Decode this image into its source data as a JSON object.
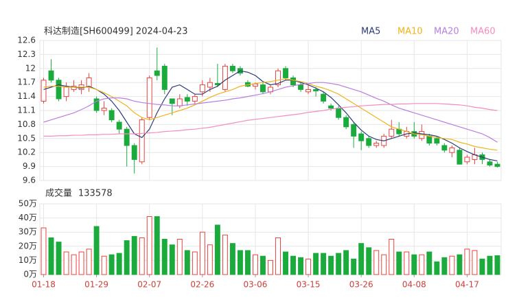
{
  "chart_data": [
    {
      "type": "candlestick",
      "title": "科达制造[SH600499] 2024-04-23",
      "open": [
        11.3,
        11.95,
        11.75,
        11.4,
        11.55,
        11.55,
        11.6,
        11.35,
        11.1,
        11.1,
        10.85,
        10.7,
        10.35,
        10.0,
        10.95,
        11.95,
        12.05,
        11.35,
        11.2,
        11.38,
        11.3,
        11.5,
        11.6,
        11.68,
        11.55,
        12.05,
        12.0,
        11.7,
        11.62,
        11.65,
        11.5,
        11.65,
        12.0,
        11.8,
        11.65,
        11.5,
        11.55,
        11.45,
        11.2,
        11.15,
        10.95,
        10.8,
        10.6,
        10.5,
        10.35,
        10.35,
        10.55,
        10.7,
        10.55,
        10.65,
        10.5,
        10.55,
        10.5,
        10.35,
        10.2,
        10.25,
        10.0,
        10.05,
        10.15,
        10.0,
        9.95
      ],
      "high": [
        11.8,
        12.2,
        11.8,
        11.7,
        11.75,
        11.75,
        11.9,
        11.4,
        11.3,
        11.15,
        10.9,
        10.75,
        10.4,
        10.95,
        11.85,
        12.45,
        12.1,
        11.35,
        11.45,
        11.45,
        11.45,
        11.75,
        11.8,
        12.1,
        12.1,
        12.1,
        12.05,
        11.75,
        11.7,
        11.7,
        11.65,
        12.0,
        12.05,
        11.85,
        11.7,
        11.65,
        11.6,
        11.5,
        11.25,
        11.2,
        11.0,
        10.85,
        10.65,
        10.55,
        10.45,
        10.6,
        10.9,
        10.85,
        10.75,
        10.85,
        10.8,
        10.6,
        10.55,
        10.4,
        10.35,
        10.3,
        10.15,
        10.3,
        10.2,
        10.05,
        10.0
      ],
      "low": [
        11.25,
        11.7,
        11.3,
        11.3,
        11.5,
        11.45,
        11.5,
        11.05,
        11.0,
        10.85,
        10.6,
        9.9,
        9.75,
        9.95,
        10.9,
        11.75,
        11.45,
        11.0,
        11.15,
        11.2,
        11.25,
        11.4,
        11.5,
        11.6,
        11.5,
        11.9,
        11.85,
        11.6,
        11.55,
        11.45,
        11.45,
        11.6,
        11.75,
        11.6,
        11.5,
        11.45,
        11.4,
        11.25,
        11.1,
        10.9,
        10.7,
        10.3,
        10.25,
        10.3,
        10.3,
        10.3,
        10.5,
        10.55,
        10.5,
        10.5,
        10.45,
        10.35,
        10.35,
        10.2,
        10.1,
        9.95,
        9.95,
        9.95,
        9.95,
        9.9,
        9.88
      ],
      "close": [
        11.75,
        11.75,
        11.35,
        11.6,
        11.62,
        11.65,
        11.8,
        11.1,
        11.15,
        10.9,
        10.7,
        10.35,
        10.05,
        10.9,
        11.8,
        11.85,
        11.55,
        11.25,
        11.35,
        11.3,
        11.4,
        11.65,
        11.7,
        11.65,
        12.05,
        11.95,
        11.9,
        11.62,
        11.67,
        11.5,
        11.6,
        11.95,
        11.8,
        11.65,
        11.55,
        11.55,
        11.52,
        11.3,
        11.15,
        10.95,
        10.75,
        10.55,
        10.45,
        10.35,
        10.4,
        10.55,
        10.7,
        10.6,
        10.65,
        10.55,
        10.65,
        10.4,
        10.4,
        10.25,
        10.3,
        9.95,
        10.1,
        10.15,
        10.05,
        9.93,
        9.9
      ],
      "up_color": "#e8413c",
      "down_color": "#1aab3c",
      "ylim": [
        9.6,
        12.6
      ],
      "yticks": [
        12.6,
        12.3,
        12,
        11.7,
        11.4,
        11.1,
        10.8,
        10.5,
        10.2,
        9.9,
        9.6
      ],
      "grid": true,
      "series": [
        {
          "name": "MA5",
          "color": "#2b3a78",
          "values": [
            11.55,
            11.6,
            11.65,
            11.62,
            11.6,
            11.58,
            11.62,
            11.55,
            11.45,
            11.3,
            11.1,
            10.85,
            10.6,
            10.52,
            10.7,
            11.05,
            11.35,
            11.6,
            11.65,
            11.55,
            11.45,
            11.45,
            11.55,
            11.62,
            11.75,
            11.85,
            11.95,
            11.92,
            11.85,
            11.72,
            11.65,
            11.68,
            11.75,
            11.75,
            11.7,
            11.65,
            11.58,
            11.5,
            11.38,
            11.22,
            11.05,
            10.85,
            10.68,
            10.55,
            10.48,
            10.45,
            10.5,
            10.55,
            10.6,
            10.62,
            10.6,
            10.58,
            10.55,
            10.48,
            10.4,
            10.3,
            10.22,
            10.15,
            10.1,
            10.05,
            10.02
          ]
        },
        {
          "name": "MA10",
          "color": "#f2b21a",
          "values": [
            11.6,
            11.62,
            11.62,
            11.6,
            11.6,
            11.6,
            11.6,
            11.55,
            11.48,
            11.4,
            11.3,
            11.2,
            11.05,
            10.95,
            10.9,
            10.95,
            11.0,
            11.05,
            11.1,
            11.15,
            11.22,
            11.3,
            11.38,
            11.45,
            11.5,
            11.55,
            11.62,
            11.65,
            11.68,
            11.7,
            11.72,
            11.75,
            11.78,
            11.75,
            11.72,
            11.68,
            11.62,
            11.58,
            11.52,
            11.45,
            11.35,
            11.25,
            11.15,
            11.05,
            10.95,
            10.85,
            10.75,
            10.7,
            10.65,
            10.6,
            10.58,
            10.55,
            10.52,
            10.5,
            10.48,
            10.42,
            10.38,
            10.33,
            10.3,
            10.27,
            10.25
          ]
        },
        {
          "name": "MA20",
          "color": "#b77ee0",
          "values": [
            10.85,
            10.9,
            10.95,
            11.0,
            11.05,
            11.12,
            11.2,
            11.3,
            11.35,
            11.37,
            11.37,
            11.35,
            11.3,
            11.27,
            11.25,
            11.23,
            11.22,
            11.2,
            11.2,
            11.22,
            11.24,
            11.26,
            11.28,
            11.3,
            11.32,
            11.35,
            11.37,
            11.4,
            11.43,
            11.46,
            11.5,
            11.55,
            11.6,
            11.63,
            11.66,
            11.68,
            11.7,
            11.7,
            11.68,
            11.65,
            11.6,
            11.55,
            11.5,
            11.43,
            11.36,
            11.3,
            11.22,
            11.15,
            11.1,
            11.05,
            11.0,
            10.95,
            10.9,
            10.85,
            10.8,
            10.75,
            10.7,
            10.65,
            10.6,
            10.52,
            10.42
          ]
        },
        {
          "name": "MA60",
          "color": "#f28cbf",
          "values": [
            10.55,
            10.55,
            10.56,
            10.56,
            10.57,
            10.57,
            10.58,
            10.58,
            10.59,
            10.59,
            10.6,
            10.6,
            10.6,
            10.61,
            10.62,
            10.63,
            10.65,
            10.66,
            10.67,
            10.69,
            10.7,
            10.72,
            10.74,
            10.77,
            10.8,
            10.83,
            10.86,
            10.89,
            10.91,
            10.93,
            10.95,
            10.97,
            10.99,
            11.01,
            11.03,
            11.06,
            11.08,
            11.1,
            11.13,
            11.15,
            11.17,
            11.18,
            11.2,
            11.21,
            11.22,
            11.23,
            11.23,
            11.24,
            11.24,
            11.25,
            11.25,
            11.25,
            11.25,
            11.24,
            11.23,
            11.22,
            11.2,
            11.17,
            11.15,
            11.12,
            11.1
          ]
        }
      ]
    },
    {
      "type": "volume",
      "title": "成交量",
      "latest": 133578,
      "categories": [
        "01-18",
        null,
        null,
        null,
        null,
        null,
        null,
        "01-29",
        null,
        null,
        null,
        null,
        null,
        null,
        "02-07",
        null,
        null,
        null,
        null,
        null,
        null,
        "02-26",
        null,
        null,
        null,
        null,
        null,
        null,
        "03-06",
        null,
        null,
        null,
        null,
        null,
        null,
        "03-15",
        null,
        null,
        null,
        null,
        null,
        null,
        "03-26",
        null,
        null,
        null,
        null,
        null,
        null,
        "04-08",
        null,
        null,
        null,
        null,
        null,
        null,
        "04-17",
        null,
        null,
        null,
        null
      ],
      "values": [
        33,
        26,
        23,
        16,
        14,
        16,
        18,
        34,
        13,
        14,
        15,
        24,
        27,
        26,
        41,
        41,
        25,
        21,
        25,
        17,
        16,
        30,
        21,
        35,
        28,
        22,
        17,
        17,
        14,
        13,
        10,
        26,
        16,
        13,
        12,
        11,
        15,
        15,
        13,
        15,
        17,
        11,
        22,
        19,
        17,
        14,
        25,
        16,
        16,
        14,
        14,
        16,
        9,
        12,
        13,
        14,
        18,
        17,
        11,
        13,
        13.3578
      ],
      "ylim": [
        0,
        50
      ],
      "yticks": [
        {
          "value": 50,
          "label": "50万"
        },
        {
          "value": 40,
          "label": "40万"
        },
        {
          "value": 30,
          "label": "30万"
        },
        {
          "value": 20,
          "label": "20万"
        },
        {
          "value": 10,
          "label": "10万"
        },
        {
          "value": 0,
          "label": "0万"
        }
      ]
    }
  ]
}
